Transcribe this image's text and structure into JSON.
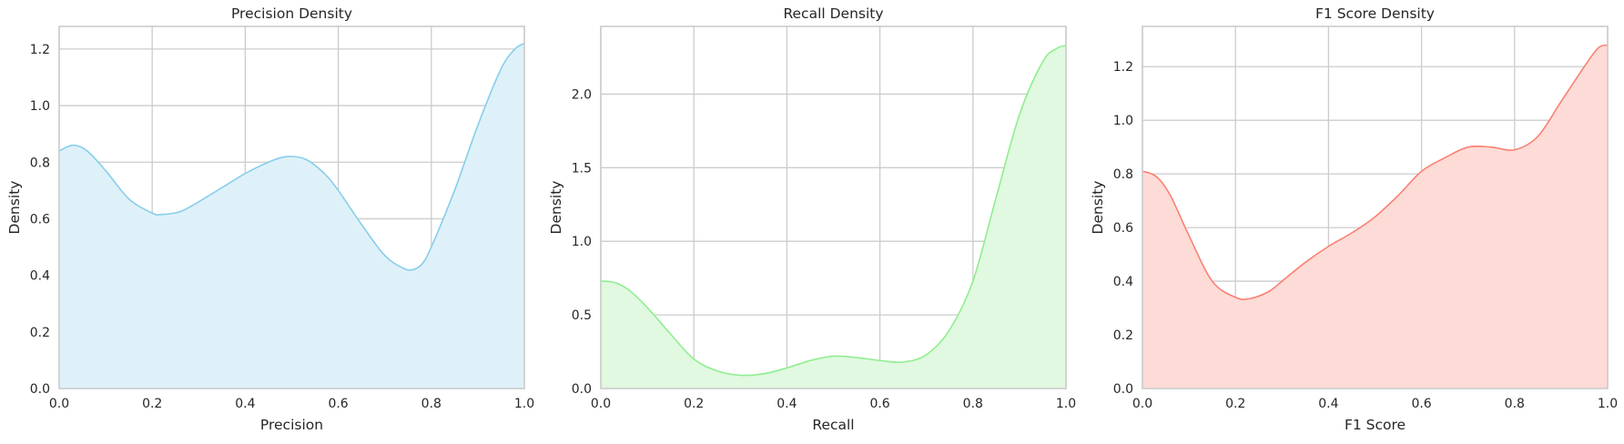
{
  "chart_data": [
    {
      "type": "area",
      "title": "Precision Density",
      "xlabel": "Precision",
      "ylabel": "Density",
      "xlim": [
        0,
        1
      ],
      "ylim": [
        0,
        1.28
      ],
      "xticks": [
        "0.0",
        "0.2",
        "0.4",
        "0.6",
        "0.8",
        "1.0"
      ],
      "yticks": [
        "0.0",
        "0.2",
        "0.4",
        "0.6",
        "0.8",
        "1.0",
        "1.2"
      ],
      "grid": true,
      "color": "#87ceeb",
      "fill": "#dff1f8",
      "series": [
        {
          "x": [
            0.0,
            0.03,
            0.06,
            0.1,
            0.15,
            0.2,
            0.22,
            0.26,
            0.3,
            0.35,
            0.4,
            0.45,
            0.49,
            0.53,
            0.57,
            0.6,
            0.65,
            0.7,
            0.74,
            0.76,
            0.78,
            0.8,
            0.85,
            0.9,
            0.95,
            0.98,
            1.0
          ],
          "values": [
            0.84,
            0.86,
            0.84,
            0.77,
            0.67,
            0.62,
            0.615,
            0.625,
            0.66,
            0.71,
            0.76,
            0.8,
            0.82,
            0.81,
            0.76,
            0.7,
            0.58,
            0.47,
            0.425,
            0.42,
            0.44,
            0.5,
            0.7,
            0.93,
            1.13,
            1.2,
            1.22
          ]
        }
      ]
    },
    {
      "type": "area",
      "title": "Recall Density",
      "xlabel": "Recall",
      "ylabel": "Density",
      "xlim": [
        0,
        1
      ],
      "ylim": [
        0,
        2.46
      ],
      "xticks": [
        "0.0",
        "0.2",
        "0.4",
        "0.6",
        "0.8",
        "1.0"
      ],
      "yticks": [
        "0.0",
        "0.5",
        "1.0",
        "1.5",
        "2.0"
      ],
      "grid": true,
      "color": "#90ee90",
      "fill": "#e0f9e0",
      "series": [
        {
          "x": [
            0.0,
            0.03,
            0.06,
            0.1,
            0.15,
            0.2,
            0.25,
            0.3,
            0.35,
            0.4,
            0.45,
            0.5,
            0.55,
            0.6,
            0.65,
            0.7,
            0.75,
            0.8,
            0.85,
            0.9,
            0.95,
            0.98,
            1.0
          ],
          "values": [
            0.73,
            0.72,
            0.67,
            0.55,
            0.37,
            0.2,
            0.12,
            0.09,
            0.1,
            0.14,
            0.19,
            0.22,
            0.21,
            0.19,
            0.18,
            0.23,
            0.4,
            0.73,
            1.3,
            1.86,
            2.22,
            2.31,
            2.33
          ]
        }
      ]
    },
    {
      "type": "area",
      "title": "F1 Score Density",
      "xlabel": "F1 Score",
      "ylabel": "Density",
      "xlim": [
        0,
        1
      ],
      "ylim": [
        0,
        1.35
      ],
      "xticks": [
        "0.0",
        "0.2",
        "0.4",
        "0.6",
        "0.8",
        "1.0"
      ],
      "yticks": [
        "0.0",
        "0.2",
        "0.4",
        "0.6",
        "0.8",
        "1.0",
        "1.2"
      ],
      "grid": true,
      "color": "#fa8072",
      "fill": "#fddbd7",
      "series": [
        {
          "x": [
            0.0,
            0.03,
            0.06,
            0.1,
            0.15,
            0.2,
            0.23,
            0.27,
            0.3,
            0.35,
            0.4,
            0.45,
            0.5,
            0.55,
            0.6,
            0.65,
            0.7,
            0.75,
            0.8,
            0.85,
            0.9,
            0.95,
            0.98,
            1.0
          ],
          "values": [
            0.81,
            0.79,
            0.72,
            0.57,
            0.4,
            0.34,
            0.335,
            0.36,
            0.4,
            0.47,
            0.53,
            0.58,
            0.64,
            0.72,
            0.81,
            0.86,
            0.9,
            0.9,
            0.89,
            0.94,
            1.07,
            1.2,
            1.27,
            1.28
          ]
        }
      ]
    }
  ]
}
